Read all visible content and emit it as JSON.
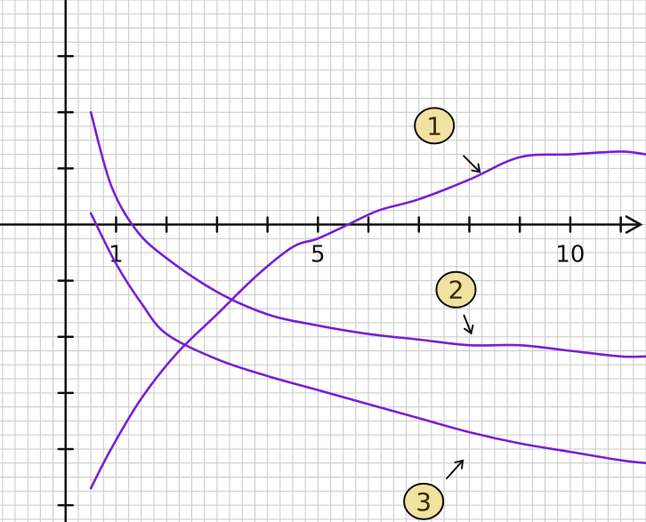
{
  "chart_data": {
    "type": "line",
    "grid": true,
    "colors": {
      "curve": "#7a1fd6",
      "axis": "#111111",
      "grid": "#c9c9c9",
      "badge_fill": "#f1e2a2"
    },
    "x_ticks": [
      1,
      2,
      3,
      4,
      5,
      6,
      7,
      8,
      9,
      10,
      11
    ],
    "x_tick_labels": [
      {
        "value": 1,
        "text": "1"
      },
      {
        "value": 5,
        "text": "5"
      },
      {
        "value": 10,
        "text": "10"
      }
    ],
    "y_ticks": [
      -5,
      -4,
      -3,
      -2,
      -1,
      1,
      2,
      3
    ],
    "xlim": [
      -1.3,
      11.5
    ],
    "ylim": [
      -5.3,
      4.0
    ],
    "series": [
      {
        "name": "1",
        "x": [
          0.5,
          0.9,
          1.5,
          2.2,
          3.0,
          3.8,
          4.5,
          5.0,
          5.6,
          6.2,
          7.0,
          8.0,
          9.0,
          10.0,
          11.0,
          11.5
        ],
        "y": [
          -4.7,
          -4.0,
          -3.1,
          -2.3,
          -1.6,
          -0.9,
          -0.4,
          -0.25,
          0.0,
          0.25,
          0.45,
          0.8,
          1.2,
          1.25,
          1.3,
          1.25
        ]
      },
      {
        "name": "2",
        "x": [
          0.5,
          0.9,
          1.4,
          2.0,
          3.0,
          4.0,
          5.0,
          6.0,
          7.0,
          8.0,
          9.0,
          10.0,
          11.0,
          11.5
        ],
        "y": [
          2.0,
          0.7,
          -0.1,
          -0.6,
          -1.2,
          -1.6,
          -1.8,
          -1.95,
          -2.05,
          -2.15,
          -2.15,
          -2.25,
          -2.35,
          -2.35
        ]
      },
      {
        "name": "3",
        "x": [
          0.5,
          1.0,
          1.5,
          2.0,
          3.0,
          4.0,
          5.0,
          6.0,
          7.0,
          8.0,
          9.0,
          10.0,
          11.0,
          11.5
        ],
        "y": [
          0.2,
          -0.7,
          -1.4,
          -1.95,
          -2.4,
          -2.7,
          -2.95,
          -3.2,
          -3.45,
          -3.7,
          -3.9,
          -4.05,
          -4.2,
          -4.25
        ]
      }
    ],
    "annotations": [
      {
        "label": "1",
        "series": "1",
        "x": 8.1,
        "y": 1.0,
        "arrow": "down-right"
      },
      {
        "label": "2",
        "series": "2",
        "x": 8.0,
        "y": -2.0,
        "arrow": "down"
      },
      {
        "label": "3",
        "series": "3",
        "x": 7.8,
        "y": -4.3,
        "arrow": "up-right"
      }
    ]
  }
}
